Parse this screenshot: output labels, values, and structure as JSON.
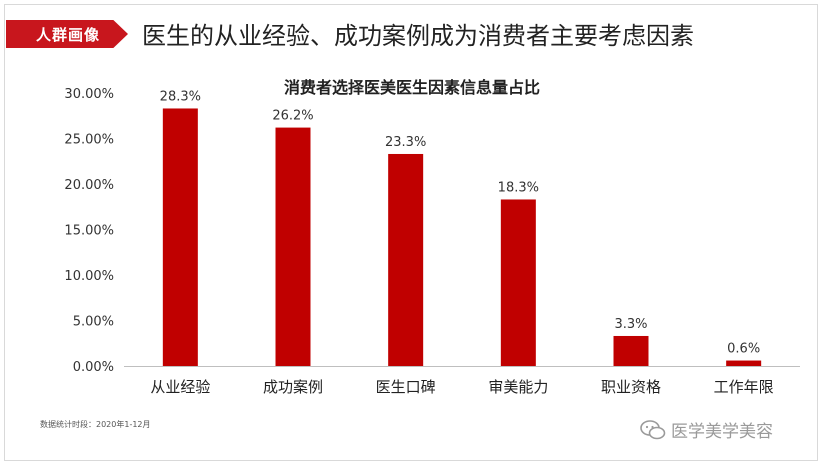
{
  "header": {
    "tag": "人群画像",
    "headline": "医生的从业经验、成功案例成为消费者主要考虑因素"
  },
  "chart_data": {
    "type": "bar",
    "title": "消费者选择医美医生因素信息量占比",
    "categories": [
      "从业经验",
      "成功案例",
      "医生口碑",
      "审美能力",
      "职业资格",
      "工作年限"
    ],
    "values": [
      28.3,
      26.2,
      23.3,
      18.3,
      3.3,
      0.6
    ],
    "value_labels": [
      "28.3%",
      "26.2%",
      "23.3%",
      "18.3%",
      "3.3%",
      "0.6%"
    ],
    "yticks": [
      "0.00%",
      "5.00%",
      "10.00%",
      "15.00%",
      "20.00%",
      "25.00%",
      "30.00%"
    ],
    "ylim": [
      0,
      30
    ],
    "grid": false,
    "bar_color": "#c00000"
  },
  "footnote": "数据统计时段：2020年1-12月",
  "watermark": {
    "icon": "wechat-icon",
    "text": "医学美学美容"
  }
}
